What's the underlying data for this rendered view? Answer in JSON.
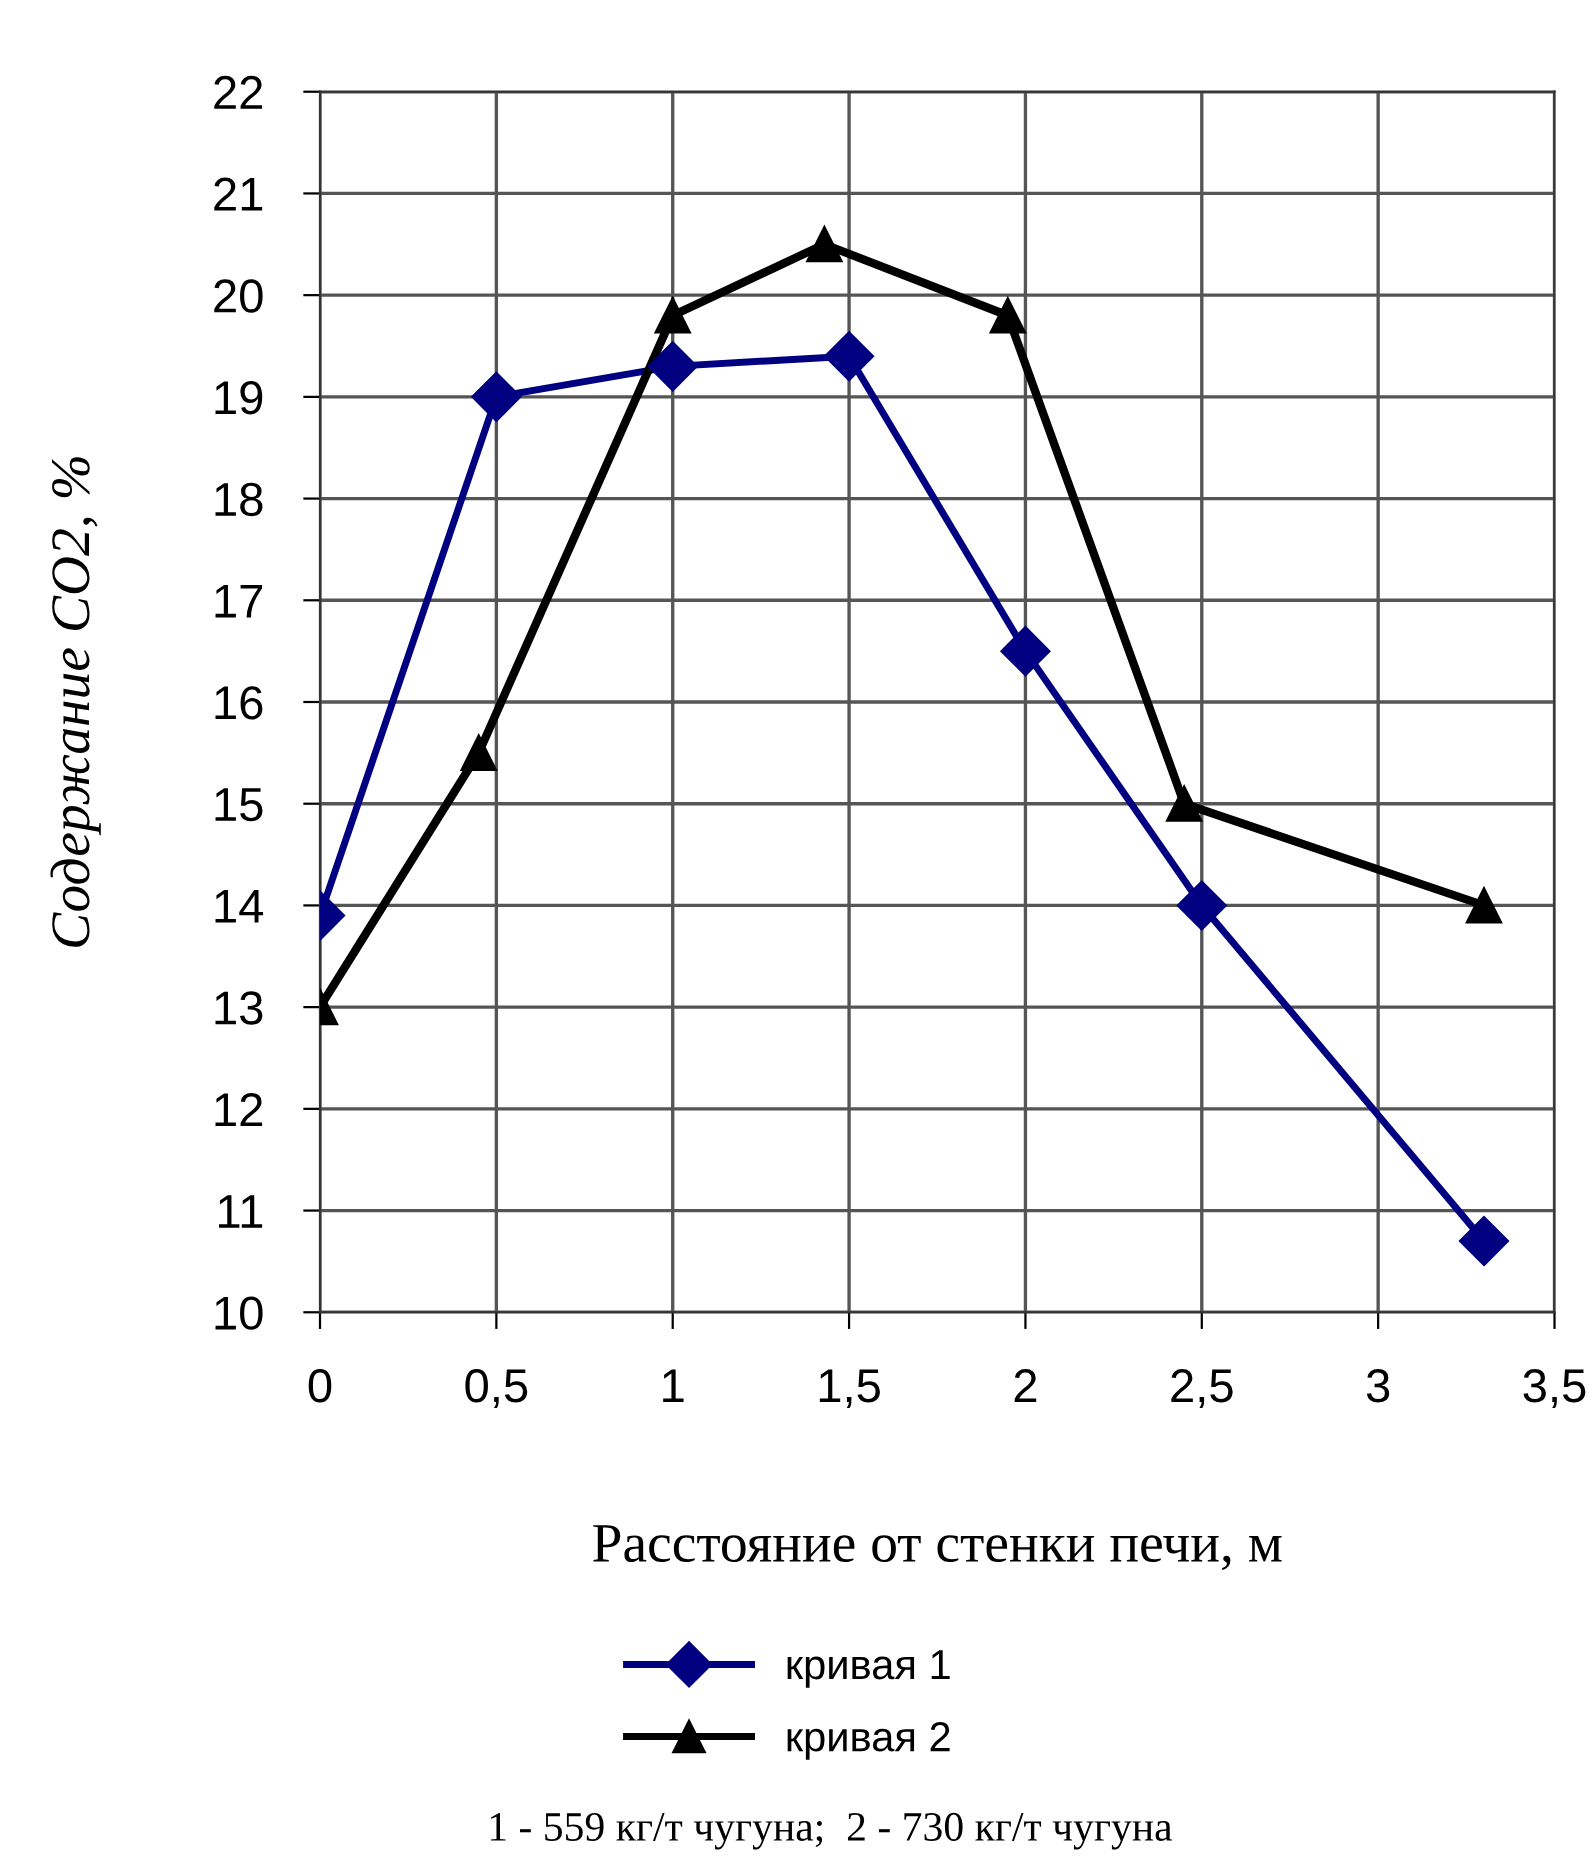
{
  "chart_data": {
    "type": "line",
    "xlabel": "Расстояние от стенки печи, м",
    "ylabel": "Содержание CO2, %",
    "xlim": [
      0,
      3.5
    ],
    "ylim": [
      10,
      22
    ],
    "xticks": [
      0,
      {
        "value": 0.5,
        "label": "0,5"
      },
      1,
      {
        "value": 1.5,
        "label": "1,5"
      },
      2,
      {
        "value": 2.5,
        "label": "2,5"
      },
      3,
      {
        "value": 3.5,
        "label": "3,5"
      }
    ],
    "yticks": [
      10,
      11,
      12,
      13,
      14,
      15,
      16,
      17,
      18,
      19,
      20,
      21,
      22
    ],
    "grid": true,
    "legend": "bottom",
    "line_style": "solid",
    "series": [
      {
        "name": "кривая 1",
        "color": "#000080",
        "marker": "diamond",
        "x": [
          0,
          0.5,
          1,
          1.5,
          2,
          2.5,
          3.3
        ],
        "values": [
          13.9,
          19.0,
          19.3,
          19.4,
          16.5,
          14.0,
          10.7
        ]
      },
      {
        "name": "кривая 2",
        "color": "#000000",
        "marker": "triangle",
        "x": [
          0,
          0.45,
          1,
          1.43,
          1.95,
          2.45,
          3.3
        ],
        "values": [
          13.0,
          15.5,
          19.8,
          20.5,
          19.8,
          15.0,
          14.0
        ]
      }
    ],
    "annotations": [
      "1 - 559 кг/т чугуна;  2 - 730 кг/т чугуна"
    ]
  }
}
